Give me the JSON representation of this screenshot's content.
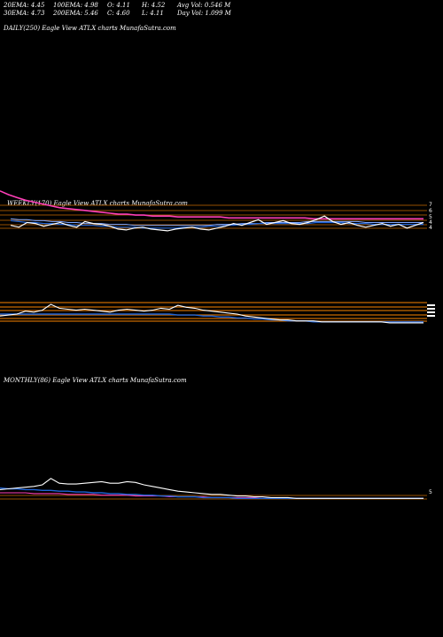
{
  "header": {
    "ema20": "20EMA: 4.45",
    "ema100": "100EMA: 4.98",
    "open": "O: 4.11",
    "high": "H: 4.52",
    "avg_vol": "Avg Vol: 0.546  M",
    "ema30": "30EMA: 4.73",
    "ema200": "200EMA: 5.46",
    "close": "C: 4.60",
    "low": "L: 4.11",
    "day_vol": "Day Vol: 1.099 M"
  },
  "panels": {
    "daily": "DAILY(250) Eagle   View  ATLX  charts MunafaSutra.com",
    "weekly": "WEEKLY(170) Eagle   View  ATLX  charts MunafaSutra.com",
    "monthly": "MONTHLY(86) Eagle   View  ATLX  charts MunafaSutra.com"
  },
  "colors": {
    "price": "#ffffff",
    "ema_fast": "#1e63d6",
    "ema_mid": "#7fa6ff",
    "ema_long": "#ff3fb8",
    "levels": "#c86a00",
    "background": "#000000"
  },
  "chart_data": [
    {
      "type": "line",
      "panel": "weekly",
      "y_ticks": [
        "7",
        "6",
        "5",
        "4",
        "4"
      ],
      "series": [
        {
          "values": [
            4.3,
            4.1,
            4.6,
            4.5,
            4.2,
            4.4,
            4.6,
            4.3,
            4.1,
            4.7,
            4.5,
            4.4,
            4.2,
            3.9,
            3.8,
            4.0,
            4.1,
            3.9,
            3.8,
            3.7,
            3.9,
            4.0,
            4.1,
            3.9,
            3.8,
            4.0,
            4.2,
            4.5,
            4.3,
            4.6,
            4.9,
            4.4,
            4.6,
            4.8,
            4.5,
            4.4,
            4.6,
            4.9,
            5.3,
            4.7,
            4.4,
            4.6,
            4.3,
            4.1,
            4.3,
            4.5,
            4.2,
            4.4,
            4.0,
            4.3,
            4.6
          ]
        },
        {
          "values": [
            4.8,
            4.7,
            4.6,
            4.6,
            4.5,
            4.5,
            4.4,
            4.4,
            4.3,
            4.3,
            4.3,
            4.2,
            4.2,
            4.1,
            4.1,
            4.1,
            4.0,
            4.0,
            4.0,
            4.0,
            4.0,
            4.1,
            4.1,
            4.1,
            4.2,
            4.2,
            4.3,
            4.3,
            4.4,
            4.4,
            4.5,
            4.5,
            4.5,
            4.5,
            4.5,
            4.5,
            4.5,
            4.6,
            4.6,
            4.6,
            4.6,
            4.5,
            4.5,
            4.5,
            4.4,
            4.4,
            4.4,
            4.4,
            4.4,
            4.4,
            4.4
          ]
        },
        {
          "values": [
            5.0,
            4.9,
            4.9,
            4.8,
            4.8,
            4.7,
            4.7,
            4.6,
            4.6,
            4.5,
            4.5,
            4.5,
            4.4,
            4.4,
            4.4,
            4.3,
            4.3,
            4.3,
            4.3,
            4.3,
            4.3,
            4.3,
            4.3,
            4.3,
            4.3,
            4.4,
            4.4,
            4.4,
            4.5,
            4.5,
            4.5,
            4.6,
            4.6,
            4.6,
            4.6,
            4.6,
            4.7,
            4.7,
            4.7,
            4.7,
            4.7,
            4.7,
            4.7,
            4.6,
            4.6,
            4.6,
            4.6,
            4.6,
            4.6,
            4.6,
            4.6
          ]
        },
        {
          "values": [
            8.0,
            7.6,
            7.3,
            7.0,
            6.8,
            6.6,
            6.4,
            6.2,
            6.1,
            6.0,
            5.9,
            5.8,
            5.7,
            5.6,
            5.5,
            5.5,
            5.4,
            5.4,
            5.3,
            5.3,
            5.3,
            5.2,
            5.2,
            5.2,
            5.2,
            5.2,
            5.2,
            5.1,
            5.1,
            5.1,
            5.1,
            5.1,
            5.1,
            5.1,
            5.1,
            5.1,
            5.1,
            5.0,
            5.0,
            5.0,
            5.0,
            5.0,
            5.0,
            5.0,
            5.0,
            5.0,
            5.0,
            5.0,
            5.0,
            5.0,
            5.0
          ]
        }
      ]
    },
    {
      "type": "line",
      "panel": "monthly-upper",
      "series": [
        {
          "values": [
            8,
            9,
            10,
            13,
            12,
            14,
            20,
            16,
            15,
            14,
            15,
            14,
            13,
            12,
            14,
            15,
            14,
            13,
            14,
            16,
            15,
            19,
            17,
            16,
            14,
            13,
            12,
            11,
            10,
            8,
            7,
            6,
            5,
            4,
            4,
            3,
            3,
            3,
            2,
            2,
            2,
            2,
            2,
            2,
            2,
            2,
            1,
            1,
            1,
            1,
            1
          ]
        },
        {
          "values": [
            10,
            10,
            10,
            10,
            10,
            10,
            10,
            10,
            10,
            10,
            10,
            10,
            10,
            10,
            10,
            10,
            10,
            10,
            10,
            10,
            10,
            9,
            9,
            9,
            8,
            8,
            7,
            7,
            6,
            6,
            5,
            5,
            4,
            4,
            3,
            3,
            3,
            2,
            2,
            2,
            2,
            2,
            2,
            2,
            2,
            2,
            2,
            2,
            2,
            2,
            2
          ]
        }
      ]
    },
    {
      "type": "line",
      "panel": "monthly",
      "y_ticks": [
        "5"
      ],
      "series": [
        {
          "values": [
            14,
            15,
            16,
            17,
            18,
            20,
            28,
            22,
            21,
            21,
            22,
            23,
            24,
            22,
            22,
            24,
            23,
            20,
            18,
            16,
            14,
            12,
            11,
            10,
            9,
            8,
            8,
            7,
            6,
            6,
            5,
            5,
            4,
            4,
            4,
            3,
            3,
            3,
            3,
            3,
            3,
            3,
            3,
            3,
            3,
            3,
            3,
            3,
            3,
            3,
            3
          ]
        },
        {
          "values": [
            16,
            15,
            15,
            14,
            14,
            13,
            13,
            12,
            12,
            11,
            11,
            10,
            10,
            9,
            9,
            8,
            8,
            7,
            7,
            6,
            6,
            5,
            5,
            5,
            4,
            4,
            4,
            4,
            3,
            3,
            3,
            3,
            3,
            3,
            3,
            3,
            3,
            3,
            3,
            3,
            3,
            3,
            3,
            3,
            3,
            3,
            3,
            3,
            3,
            3,
            3
          ]
        },
        {
          "values": [
            10,
            10,
            10,
            10,
            9,
            9,
            9,
            9,
            8,
            8,
            8,
            8,
            7,
            7,
            7,
            7,
            6,
            6,
            6,
            6,
            5,
            5,
            5,
            5,
            5,
            4,
            4,
            4,
            4,
            4,
            4,
            3,
            3,
            3,
            3,
            3,
            3,
            3,
            3,
            3,
            3,
            3,
            3,
            3,
            3,
            3,
            3,
            3,
            3,
            3,
            3
          ]
        }
      ]
    }
  ]
}
